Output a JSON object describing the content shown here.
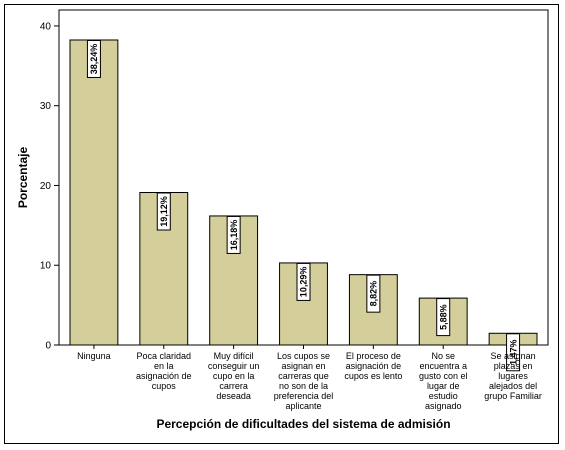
{
  "chart_data": {
    "type": "bar",
    "categories": [
      "Ninguna",
      "Poca claridad en la asignación de cupos",
      "Muy difícil conseguir un cupo en la carrera deseada",
      "Los cupos se asignan en carreras que no son de la preferencia del aplicante",
      "El proceso de asignación de cupos es lento",
      "No se encuentra a gusto con el lugar de estudio asignado",
      "Se asignan plazas en lugares alejados del grupo Familiar"
    ],
    "category_lines": [
      [
        "Ninguna"
      ],
      [
        "Poca claridad",
        "en la",
        "asignación de",
        "cupos"
      ],
      [
        "Muy difícil",
        "conseguir un",
        "cupo en la",
        "carrera",
        "deseada"
      ],
      [
        "Los cupos se",
        "asignan en",
        "carreras que",
        "no son de la",
        "preferencia del",
        "aplicante"
      ],
      [
        "El proceso de",
        "asignación de",
        "cupos es lento"
      ],
      [
        "No se",
        "encuentra a",
        "gusto con el",
        "lugar de",
        "estudio",
        "asignado"
      ],
      [
        "Se asignan",
        "plazas en",
        "lugares",
        "alejados del",
        "grupo Familiar"
      ]
    ],
    "values": [
      38.24,
      19.12,
      16.18,
      10.29,
      8.82,
      5.88,
      1.47
    ],
    "data_labels": [
      "38,24%",
      "19,12%",
      "16,18%",
      "10,29%",
      "8,82%",
      "5,88%",
      "1,47%"
    ],
    "xlabel": "Percepción de dificultades del sistema de admisión",
    "ylabel": "Porcentaje",
    "ylim": [
      0,
      42
    ],
    "yticks": [
      0,
      10,
      20,
      30,
      40
    ],
    "ytick_labels": [
      "0",
      "10",
      "20",
      "30",
      "40"
    ],
    "grid": false,
    "bar_color": "#d3ce9a",
    "bar_edge_color": "#000000"
  }
}
